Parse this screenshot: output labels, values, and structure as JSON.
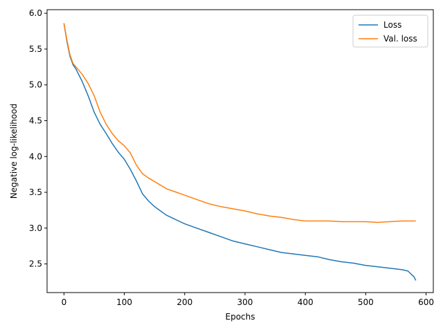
{
  "chart_data": {
    "type": "line",
    "title": "",
    "xlabel": "Epochs",
    "ylabel": "Negative log-likelihood",
    "xlim": [
      -28,
      612
    ],
    "ylim": [
      2.1,
      6.05
    ],
    "xticks": [
      0,
      100,
      200,
      300,
      400,
      500,
      600
    ],
    "yticks": [
      2.5,
      3.0,
      3.5,
      4.0,
      4.5,
      5.0,
      5.5,
      6.0
    ],
    "xtick_labels": [
      "0",
      "100",
      "200",
      "300",
      "400",
      "500",
      "600"
    ],
    "ytick_labels": [
      "2.5",
      "3.0",
      "3.5",
      "4.0",
      "4.5",
      "5.0",
      "5.5",
      "6.0"
    ],
    "grid": false,
    "legend_position": "upper-right",
    "series": [
      {
        "name": "Loss",
        "color": "#1f77b4",
        "x": [
          0,
          5,
          10,
          15,
          20,
          30,
          40,
          50,
          60,
          70,
          80,
          90,
          100,
          110,
          120,
          130,
          140,
          150,
          160,
          170,
          180,
          190,
          200,
          220,
          240,
          260,
          280,
          300,
          320,
          340,
          360,
          380,
          400,
          420,
          440,
          460,
          480,
          500,
          520,
          540,
          560,
          570,
          575,
          580,
          583
        ],
        "y": [
          5.86,
          5.6,
          5.4,
          5.28,
          5.22,
          5.05,
          4.85,
          4.62,
          4.45,
          4.32,
          4.18,
          4.06,
          3.96,
          3.82,
          3.66,
          3.48,
          3.38,
          3.3,
          3.24,
          3.18,
          3.14,
          3.1,
          3.06,
          3.0,
          2.94,
          2.88,
          2.82,
          2.78,
          2.74,
          2.7,
          2.66,
          2.64,
          2.62,
          2.6,
          2.56,
          2.53,
          2.51,
          2.48,
          2.46,
          2.44,
          2.42,
          2.4,
          2.36,
          2.32,
          2.27
        ]
      },
      {
        "name": "Val. loss",
        "color": "#ff7f0e",
        "x": [
          0,
          5,
          10,
          15,
          20,
          30,
          40,
          50,
          60,
          70,
          80,
          90,
          100,
          110,
          120,
          130,
          140,
          150,
          160,
          170,
          180,
          200,
          220,
          240,
          260,
          280,
          300,
          320,
          340,
          360,
          380,
          400,
          420,
          440,
          460,
          480,
          500,
          520,
          540,
          560,
          583
        ],
        "y": [
          5.86,
          5.62,
          5.42,
          5.3,
          5.25,
          5.15,
          5.02,
          4.85,
          4.62,
          4.45,
          4.32,
          4.22,
          4.15,
          4.05,
          3.88,
          3.76,
          3.7,
          3.65,
          3.6,
          3.55,
          3.52,
          3.46,
          3.4,
          3.34,
          3.3,
          3.27,
          3.24,
          3.2,
          3.17,
          3.15,
          3.12,
          3.1,
          3.1,
          3.1,
          3.09,
          3.09,
          3.09,
          3.08,
          3.09,
          3.1,
          3.1
        ]
      }
    ]
  }
}
